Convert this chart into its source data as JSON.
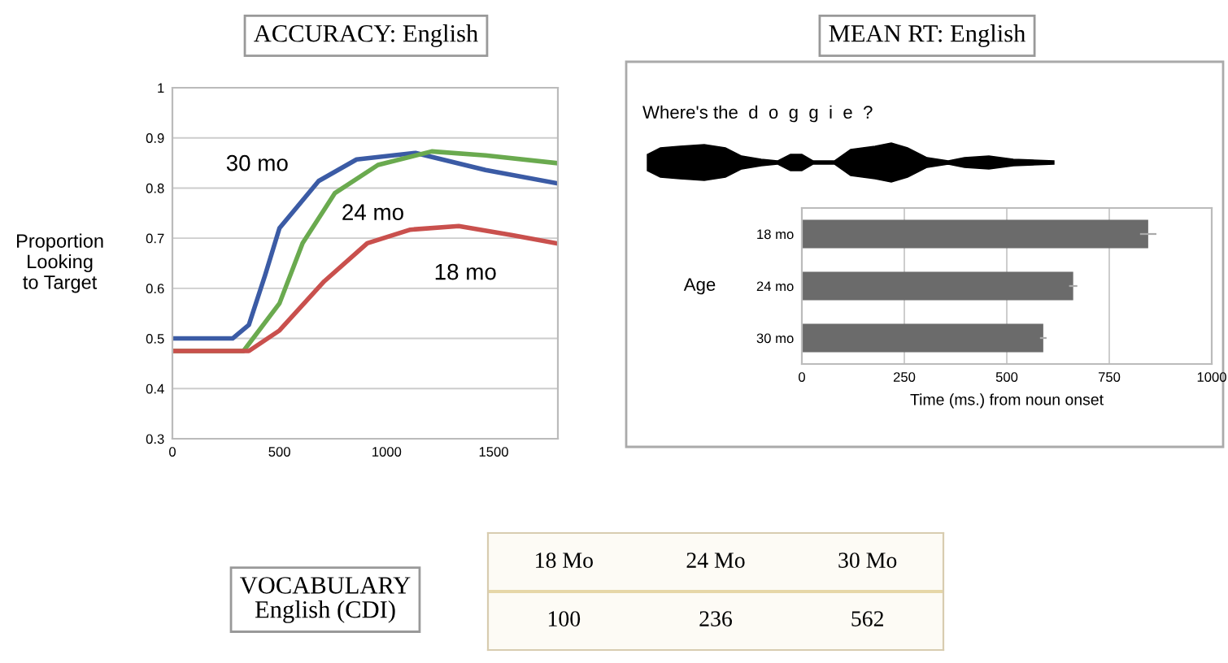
{
  "chart_data": [
    {
      "type": "line",
      "title": "ACCURACY: English",
      "ylabel": "Proportion\nLooking\nto Target",
      "xlim": [
        0,
        1800
      ],
      "xticks": [
        0,
        500,
        1000,
        1500
      ],
      "ylim": [
        0.3,
        1
      ],
      "yticks": [
        {
          "value": 0.3,
          "label": "0.3"
        },
        0.4,
        0.5,
        0.6,
        0.7,
        0.8,
        0.9,
        1
      ],
      "grid": "y",
      "legend": false,
      "series": [
        {
          "name": "30 mo",
          "color": "#3b5ba5",
          "x": [
            0,
            281,
            357,
            432,
            500,
            683,
            860,
            1135,
            1462,
            1790
          ],
          "values": [
            0.5,
            0.5,
            0.527,
            0.625,
            0.72,
            0.814,
            0.857,
            0.87,
            0.836,
            0.81
          ]
        },
        {
          "name": "24 mo",
          "color": "#6aaa4f",
          "x": [
            0,
            332,
            500,
            608,
            759,
            960,
            1211,
            1462,
            1790
          ],
          "values": [
            0.475,
            0.475,
            0.57,
            0.69,
            0.79,
            0.846,
            0.873,
            0.865,
            0.85
          ]
        },
        {
          "name": "18 mo",
          "color": "#c9504d",
          "x": [
            0,
            357,
            500,
            709,
            910,
            1111,
            1337,
            1588,
            1790
          ],
          "values": [
            0.475,
            0.475,
            0.516,
            0.614,
            0.69,
            0.717,
            0.724,
            0.706,
            0.69
          ]
        }
      ]
    },
    {
      "type": "bar",
      "orientation": "horizontal",
      "title": "MEAN RT: English",
      "ylabel": "Age",
      "xlabel": "Time (ms.) from noun onset",
      "annotations": [
        "Where's the  d  o  g  g  i  e  ?"
      ],
      "categories": [
        "18 mo",
        "24 mo",
        "30 mo"
      ],
      "values": [
        845,
        662,
        589
      ],
      "errors": [
        20,
        10,
        8
      ],
      "color": "#6b6b6b",
      "xlim": [
        0,
        1000
      ],
      "xticks": [
        0,
        250,
        500,
        750,
        1000
      ],
      "grid": "x"
    },
    {
      "type": "other",
      "title": "VOCABULARY\nEnglish (CDI)",
      "categories": [
        "18 Mo",
        "24 Mo",
        "30 Mo"
      ],
      "values": [
        100,
        236,
        562
      ],
      "data_labels": true
    }
  ]
}
